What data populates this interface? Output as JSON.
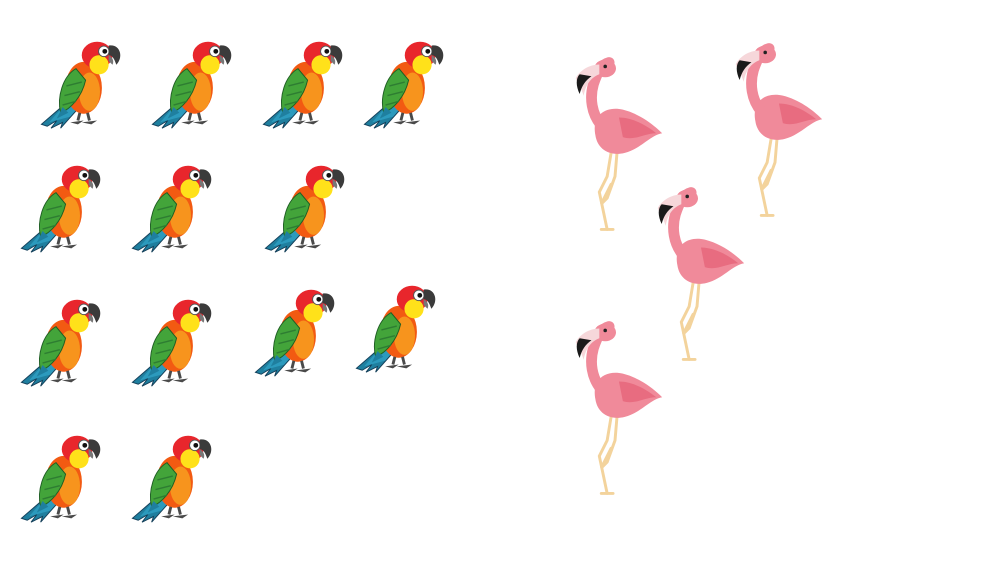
{
  "scene": {
    "background": "#ffffff",
    "groups": [
      {
        "kind": "parrot",
        "count": 13,
        "icon": "parrot-icon",
        "colors": {
          "body": "#f25a12",
          "belly": "#f7941d",
          "head": "#e8262c",
          "face": "#ffe11a",
          "wing": "#43a43a",
          "tail": "#1f7f9f",
          "beak": "#3b3b3b",
          "feet": "#4a4a4a"
        }
      },
      {
        "kind": "flamingo",
        "count": 4,
        "icon": "flamingo-icon",
        "colors": {
          "body": "#f08a9a",
          "wing": "#e86c80",
          "beak": "#1a1a1a",
          "bill_base": "#f6d7da",
          "legs": "#f3d39c"
        }
      }
    ]
  }
}
